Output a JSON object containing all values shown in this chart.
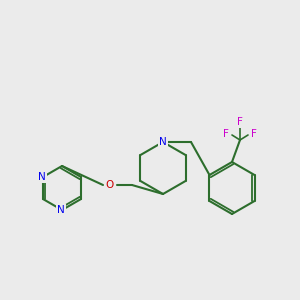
{
  "background_color": "#EBEBEB",
  "bond_color": "#2d6e2d",
  "bond_width": 1.5,
  "atom_colors": {
    "N": "#0000EE",
    "O": "#CC0000",
    "F": "#CC00CC",
    "C": "#2d6e2d"
  },
  "font_size": 7.5,
  "fig_size": [
    3.0,
    3.0
  ],
  "dpi": 100
}
